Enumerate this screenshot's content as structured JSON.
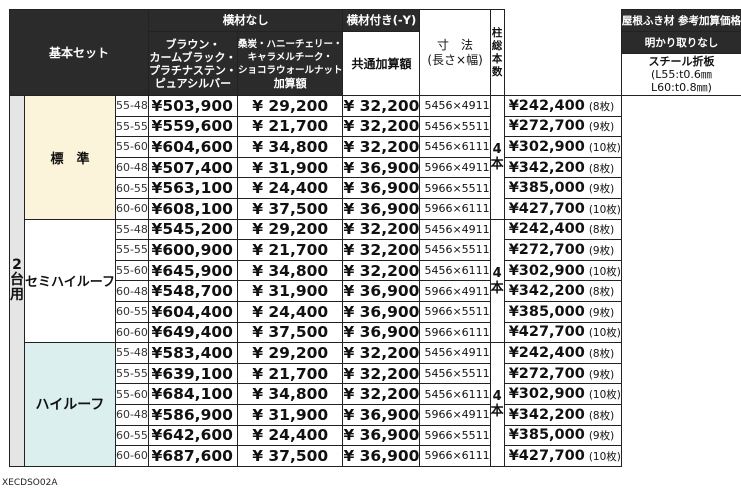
{
  "header": {
    "base_set": "基本セット",
    "no_crossbar": "横材なし",
    "with_crossbar": "横材付き(-Y)",
    "col_color_a": [
      "ブラウン・",
      "カームブラック・",
      "プラチナステン・",
      "ピュアシルバー"
    ],
    "col_color_b": [
      "桑炭・ハニーチェリー・",
      "キャラメルチーク・",
      "ショコラウォールナット",
      "加算額"
    ],
    "common_add": "共通加算額",
    "dims_title": "寸　法",
    "dims_sub": "(長さ×幅)",
    "pillars": [
      "柱",
      "総",
      "本",
      "数"
    ],
    "roof_title": "屋根ふき材 参考加算価格",
    "roof_sub": "明かり取りなし",
    "roof_mat": "スチール折板",
    "roof_spec1": "(L55:t0.6㎜",
    "roof_spec2": "L60:t0.8㎜)"
  },
  "side_label": [
    "2",
    "台",
    "用"
  ],
  "groups": [
    {
      "name": "標　準",
      "pillars": [
        "4",
        "本"
      ]
    },
    {
      "name": "セミハイルーフ",
      "pillars": [
        "4",
        "本"
      ]
    },
    {
      "name": "ハイルーフ",
      "pillars": [
        "4",
        "本"
      ]
    }
  ],
  "rows": [
    {
      "model": "55-48",
      "price": "¥503,900",
      "add": "¥  29,200",
      "common": "¥  32,200",
      "dims": "5456×4911",
      "roof": "¥242,400",
      "sheets": "(8枚)"
    },
    {
      "model": "55-55",
      "price": "¥559,600",
      "add": "¥  21,700",
      "common": "¥  32,200",
      "dims": "5456×5511",
      "roof": "¥272,700",
      "sheets": "(9枚)"
    },
    {
      "model": "55-60",
      "price": "¥604,600",
      "add": "¥  34,800",
      "common": "¥  32,200",
      "dims": "5456×6111",
      "roof": "¥302,900",
      "sheets": "(10枚)"
    },
    {
      "model": "60-48",
      "price": "¥507,400",
      "add": "¥  31,900",
      "common": "¥  36,900",
      "dims": "5966×4911",
      "roof": "¥342,200",
      "sheets": "(8枚)"
    },
    {
      "model": "60-55",
      "price": "¥563,100",
      "add": "¥  24,400",
      "common": "¥  36,900",
      "dims": "5966×5511",
      "roof": "¥385,000",
      "sheets": "(9枚)"
    },
    {
      "model": "60-60",
      "price": "¥608,100",
      "add": "¥  37,500",
      "common": "¥  36,900",
      "dims": "5966×6111",
      "roof": "¥427,700",
      "sheets": "(10枚)"
    },
    {
      "model": "55-48",
      "price": "¥545,200",
      "add": "¥  29,200",
      "common": "¥  32,200",
      "dims": "5456×4911",
      "roof": "¥242,400",
      "sheets": "(8枚)"
    },
    {
      "model": "55-55",
      "price": "¥600,900",
      "add": "¥  21,700",
      "common": "¥  32,200",
      "dims": "5456×5511",
      "roof": "¥272,700",
      "sheets": "(9枚)"
    },
    {
      "model": "55-60",
      "price": "¥645,900",
      "add": "¥  34,800",
      "common": "¥  32,200",
      "dims": "5456×6111",
      "roof": "¥302,900",
      "sheets": "(10枚)"
    },
    {
      "model": "60-48",
      "price": "¥548,700",
      "add": "¥  31,900",
      "common": "¥  36,900",
      "dims": "5966×4911",
      "roof": "¥342,200",
      "sheets": "(8枚)"
    },
    {
      "model": "60-55",
      "price": "¥604,400",
      "add": "¥  24,400",
      "common": "¥  36,900",
      "dims": "5966×5511",
      "roof": "¥385,000",
      "sheets": "(9枚)"
    },
    {
      "model": "60-60",
      "price": "¥649,400",
      "add": "¥  37,500",
      "common": "¥  36,900",
      "dims": "5966×6111",
      "roof": "¥427,700",
      "sheets": "(10枚)"
    },
    {
      "model": "55-48",
      "price": "¥583,400",
      "add": "¥  29,200",
      "common": "¥  32,200",
      "dims": "5456×4911",
      "roof": "¥242,400",
      "sheets": "(8枚)"
    },
    {
      "model": "55-55",
      "price": "¥639,100",
      "add": "¥  21,700",
      "common": "¥  32,200",
      "dims": "5456×5511",
      "roof": "¥272,700",
      "sheets": "(9枚)"
    },
    {
      "model": "55-60",
      "price": "¥684,100",
      "add": "¥  34,800",
      "common": "¥  32,200",
      "dims": "5456×6111",
      "roof": "¥302,900",
      "sheets": "(10枚)"
    },
    {
      "model": "60-48",
      "price": "¥586,900",
      "add": "¥  31,900",
      "common": "¥  36,900",
      "dims": "5966×4911",
      "roof": "¥342,200",
      "sheets": "(8枚)"
    },
    {
      "model": "60-55",
      "price": "¥642,600",
      "add": "¥  24,400",
      "common": "¥  36,900",
      "dims": "5966×5511",
      "roof": "¥385,000",
      "sheets": "(9枚)"
    },
    {
      "model": "60-60",
      "price": "¥687,600",
      "add": "¥  37,500",
      "common": "¥  36,900",
      "dims": "5966×6111",
      "roof": "¥427,700",
      "sheets": "(10枚)"
    }
  ],
  "footer_code": "XECDSO02A"
}
